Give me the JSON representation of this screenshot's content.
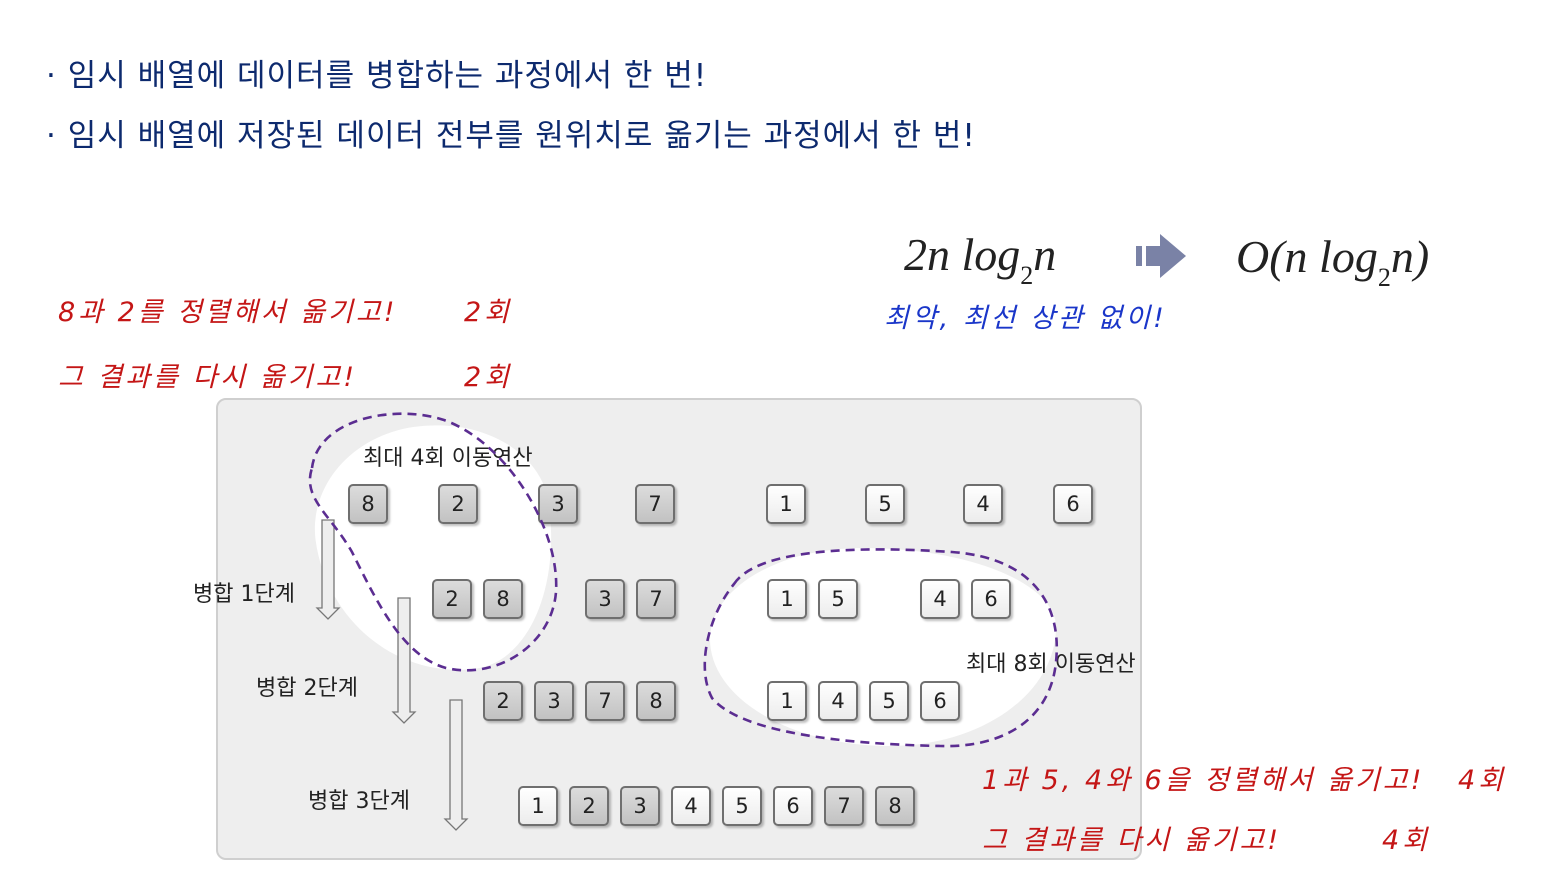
{
  "bullets": [
    "· 임시 배열에 데이터를 병합하는 과정에서 한 번!",
    "· 임시 배열에 저장된 데이터 전부를 원위치로 옮기는 과정에서 한 번!"
  ],
  "formula": {
    "left_main": "2n log",
    "left_sub": "2",
    "left_tail": "n",
    "arrow_icon": "right-arrow-icon",
    "right_main": "O(n log",
    "right_sub": "2",
    "right_tail": "n)"
  },
  "notes": {
    "worst_best": "최악, 최선 상관 없이!",
    "left_line1": "8과 2를 정렬해서 옮기고!",
    "left_line1_count": "2회",
    "left_line2": "그 결과를 다시 옮기고!",
    "left_line2_count": "2회",
    "right_line1": "1과 5, 4와 6을 정렬해서 옮기고!",
    "right_line1_count": "4회",
    "right_line2": "그 결과를 다시 옮기고!",
    "right_line2_count": "4회"
  },
  "diagram": {
    "max4": "최대 4회 이동연산",
    "max8": "최대 8회 이동연산",
    "stage1": "병합 1단계",
    "stage2": "병합 2단계",
    "stage3": "병합 3단계",
    "row0": [
      "8",
      "2",
      "3",
      "7",
      "1",
      "5",
      "4",
      "6"
    ],
    "row1": [
      "2",
      "8",
      "3",
      "7",
      "1",
      "5",
      "4",
      "6"
    ],
    "row2": [
      "2",
      "3",
      "7",
      "8",
      "1",
      "4",
      "5",
      "6"
    ],
    "row3": [
      "1",
      "2",
      "3",
      "4",
      "5",
      "6",
      "7",
      "8"
    ],
    "colors": {
      "gray_box": "#c8c8c8",
      "white_box": "#ffffff",
      "dashed": "#5b2d91"
    }
  }
}
